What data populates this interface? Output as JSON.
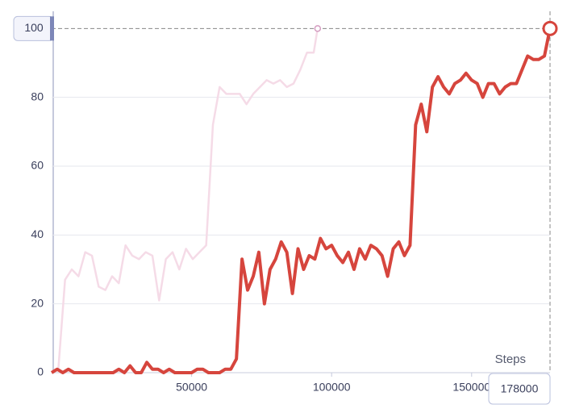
{
  "chart_data": {
    "type": "line",
    "xlabel": "Steps",
    "xlim": [
      0,
      178000
    ],
    "ylim": [
      0,
      105
    ],
    "xticks": [
      50000,
      100000,
      150000
    ],
    "yticks": [
      0,
      20,
      40,
      60,
      80
    ],
    "grid": true,
    "series": [
      {
        "color": "#f5dbe7",
        "marker_color": "#d49cc0",
        "x": [
          0,
          2400,
          4800,
          7200,
          9600,
          12000,
          14400,
          16800,
          19200,
          21600,
          24000,
          26400,
          28800,
          31200,
          33600,
          36000,
          38400,
          40800,
          43200,
          45600,
          48000,
          50400,
          52800,
          55200,
          57600,
          60000,
          62400,
          64800,
          67200,
          69600,
          72000,
          74400,
          76800,
          79200,
          81600,
          84000,
          86400,
          88800,
          91200,
          93600,
          95000
        ],
        "values": [
          0,
          1,
          27,
          30,
          28,
          35,
          34,
          25,
          24,
          28,
          26,
          37,
          34,
          33,
          35,
          34,
          21,
          33,
          35,
          30,
          36,
          33,
          35,
          37,
          72,
          83,
          81,
          81,
          81,
          78,
          81,
          83,
          85,
          84,
          85,
          83,
          84,
          88,
          93,
          93,
          100
        ]
      },
      {
        "color": "#d6453d",
        "marker_color": "#d6453d",
        "x": [
          0,
          2000,
          4000,
          6000,
          8000,
          10000,
          12000,
          14000,
          16000,
          18000,
          20000,
          22000,
          24000,
          26000,
          28000,
          30000,
          32000,
          34000,
          36000,
          38000,
          40000,
          42000,
          44000,
          46000,
          48000,
          50000,
          52000,
          54000,
          56000,
          58000,
          60000,
          62000,
          64000,
          66000,
          68000,
          70000,
          72000,
          74000,
          76000,
          78000,
          80000,
          82000,
          84000,
          86000,
          88000,
          90000,
          92000,
          94000,
          96000,
          98000,
          100000,
          102000,
          104000,
          106000,
          108000,
          110000,
          112000,
          114000,
          116000,
          118000,
          120000,
          122000,
          124000,
          126000,
          128000,
          130000,
          132000,
          134000,
          136000,
          138000,
          140000,
          142000,
          144000,
          146000,
          148000,
          150000,
          152000,
          154000,
          156000,
          158000,
          160000,
          162000,
          164000,
          166000,
          168000,
          170000,
          172000,
          174000,
          176000,
          178000
        ],
        "values": [
          0,
          1,
          0,
          1,
          0,
          0,
          0,
          0,
          0,
          0,
          0,
          0,
          1,
          0,
          2,
          0,
          0,
          3,
          1,
          1,
          0,
          1,
          0,
          0,
          0,
          0,
          1,
          1,
          0,
          0,
          0,
          1,
          1,
          4,
          33,
          24,
          28,
          35,
          20,
          30,
          33,
          38,
          35,
          23,
          36,
          30,
          34,
          33,
          39,
          36,
          37,
          34,
          32,
          35,
          30,
          36,
          33,
          37,
          36,
          34,
          28,
          36,
          38,
          34,
          37,
          72,
          78,
          70,
          83,
          86,
          83,
          81,
          84,
          85,
          87,
          85,
          84,
          80,
          84,
          84,
          81,
          83,
          84,
          84,
          88,
          92,
          91,
          91,
          92,
          100
        ]
      }
    ],
    "cursor": {
      "x": 178000,
      "y": 100
    }
  }
}
